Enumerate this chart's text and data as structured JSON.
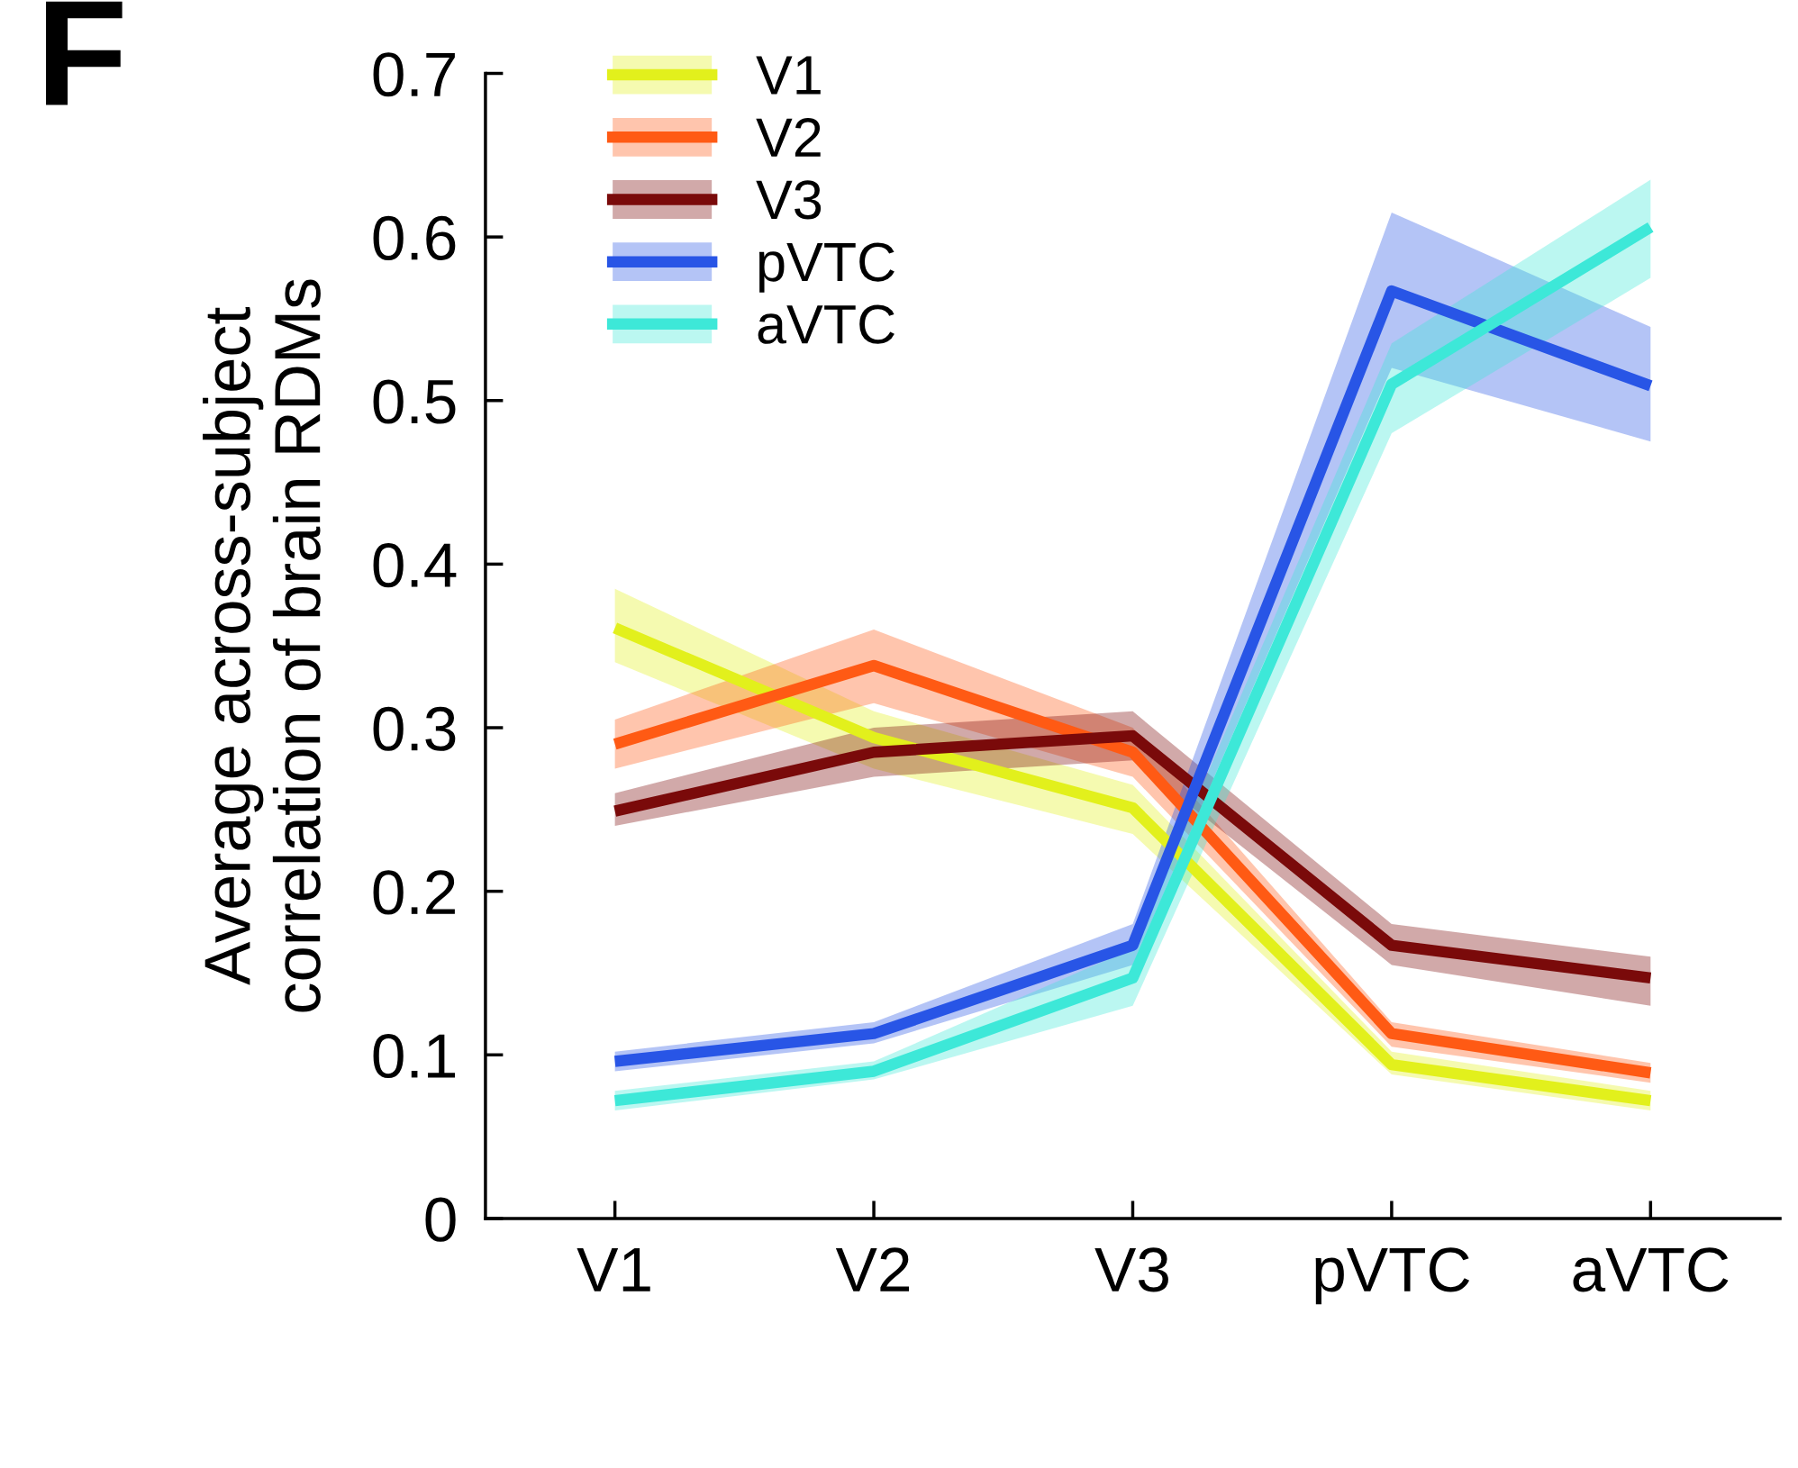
{
  "chart_data": {
    "type": "line",
    "ylabel": "Average across-subject\ncorrelation of brain RDMs",
    "categories": [
      "V1",
      "V2",
      "V3",
      "pVTC",
      "aVTC"
    ],
    "series": [
      {
        "name": "V1",
        "color": "#e2f01c",
        "values": [
          0.361,
          0.294,
          0.251,
          0.094,
          0.072
        ],
        "lower": [
          0.34,
          0.275,
          0.235,
          0.088,
          0.066
        ],
        "upper": [
          0.385,
          0.31,
          0.265,
          0.102,
          0.078
        ]
      },
      {
        "name": "V2",
        "color": "#ff5a14",
        "values": [
          0.29,
          0.338,
          0.285,
          0.113,
          0.089
        ],
        "lower": [
          0.275,
          0.315,
          0.27,
          0.105,
          0.083
        ],
        "upper": [
          0.305,
          0.36,
          0.3,
          0.12,
          0.095
        ]
      },
      {
        "name": "V3",
        "color": "#7a0a0a",
        "values": [
          0.249,
          0.285,
          0.295,
          0.167,
          0.147
        ],
        "lower": [
          0.24,
          0.27,
          0.28,
          0.155,
          0.13
        ],
        "upper": [
          0.26,
          0.3,
          0.31,
          0.18,
          0.16
        ]
      },
      {
        "name": "pVTC",
        "color": "#2855e6",
        "values": [
          0.096,
          0.113,
          0.167,
          0.567,
          0.509
        ],
        "lower": [
          0.09,
          0.107,
          0.155,
          0.52,
          0.475
        ],
        "upper": [
          0.102,
          0.12,
          0.18,
          0.615,
          0.545
        ]
      },
      {
        "name": "aVTC",
        "color": "#3de8d8",
        "values": [
          0.072,
          0.09,
          0.147,
          0.51,
          0.606
        ],
        "lower": [
          0.066,
          0.085,
          0.13,
          0.48,
          0.575
        ],
        "upper": [
          0.078,
          0.096,
          0.165,
          0.535,
          0.635
        ]
      }
    ],
    "ylim": [
      0,
      0.7
    ],
    "yticks": [
      0,
      0.1,
      0.2,
      0.3,
      0.4,
      0.5,
      0.6,
      0.7
    ],
    "grid": false,
    "legend": "top left",
    "marker": "none",
    "line_style": "solid",
    "annotations": [
      "F"
    ]
  }
}
